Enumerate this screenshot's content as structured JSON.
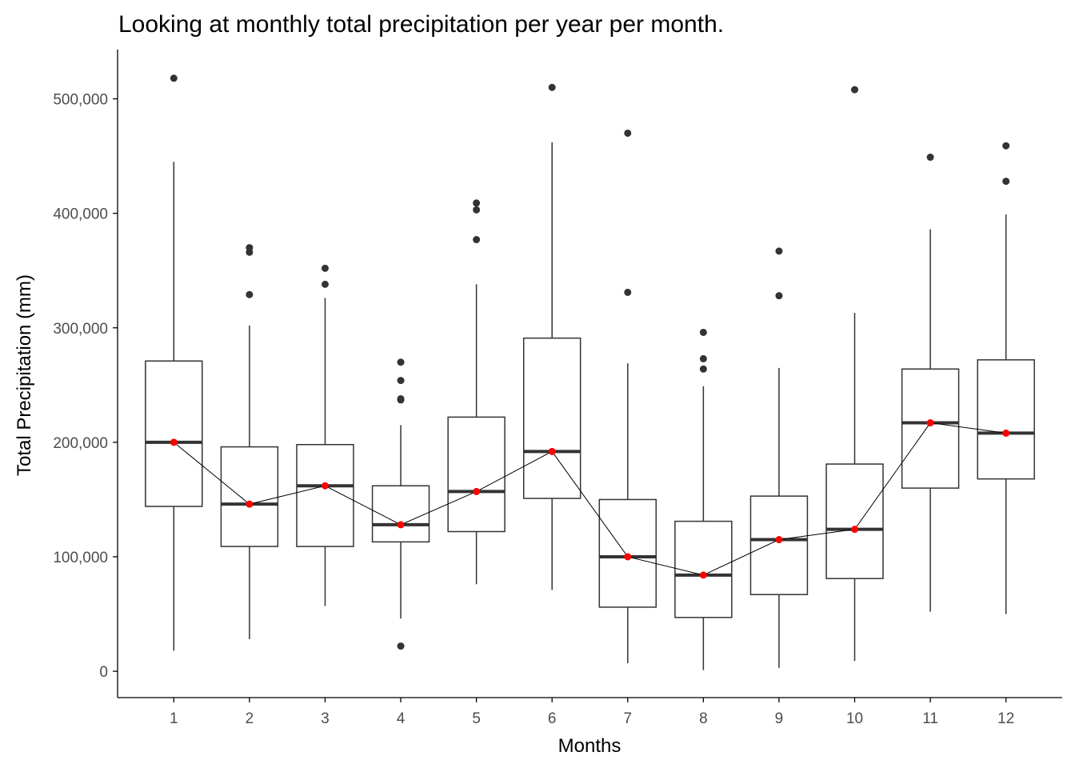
{
  "chart_data": {
    "type": "box",
    "title": "Looking at monthly total precipitation per year per month.",
    "xlabel": "Months",
    "ylabel": "Total Precipitation (mm)",
    "categories": [
      "1",
      "2",
      "3",
      "4",
      "5",
      "6",
      "7",
      "8",
      "9",
      "10",
      "11",
      "12"
    ],
    "ylim": [
      -23000,
      543000
    ],
    "yticks": [
      0,
      100000,
      200000,
      300000,
      400000,
      500000
    ],
    "ytick_labels": [
      "0",
      "100,000",
      "200,000",
      "300,000",
      "400,000",
      "500,000"
    ],
    "grid": false,
    "legend": "none",
    "boxes": [
      {
        "whisker_low": 18000,
        "q1": 144000,
        "median": 200000,
        "q3": 271000,
        "whisker_high": 445000,
        "outliers": [
          518000
        ]
      },
      {
        "whisker_low": 28000,
        "q1": 109000,
        "median": 146000,
        "q3": 196000,
        "whisker_high": 302000,
        "outliers": [
          329000,
          366000,
          370000
        ]
      },
      {
        "whisker_low": 57000,
        "q1": 109000,
        "median": 162000,
        "q3": 198000,
        "whisker_high": 326000,
        "outliers": [
          338000,
          352000
        ]
      },
      {
        "whisker_low": 46000,
        "q1": 113000,
        "median": 128000,
        "q3": 162000,
        "whisker_high": 215000,
        "outliers": [
          22000,
          237000,
          238000,
          254000,
          270000
        ]
      },
      {
        "whisker_low": 76000,
        "q1": 122000,
        "median": 157000,
        "q3": 222000,
        "whisker_high": 338000,
        "outliers": [
          377000,
          403000,
          409000
        ]
      },
      {
        "whisker_low": 71000,
        "q1": 151000,
        "median": 192000,
        "q3": 291000,
        "whisker_high": 462000,
        "outliers": [
          510000
        ]
      },
      {
        "whisker_low": 7000,
        "q1": 56000,
        "median": 100000,
        "q3": 150000,
        "whisker_high": 269000,
        "outliers": [
          331000,
          470000
        ]
      },
      {
        "whisker_low": 1000,
        "q1": 47000,
        "median": 84000,
        "q3": 131000,
        "whisker_high": 249000,
        "outliers": [
          264000,
          273000,
          296000
        ]
      },
      {
        "whisker_low": 3000,
        "q1": 67000,
        "median": 115000,
        "q3": 153000,
        "whisker_high": 265000,
        "outliers": [
          328000,
          367000
        ]
      },
      {
        "whisker_low": 9000,
        "q1": 81000,
        "median": 124000,
        "q3": 181000,
        "whisker_high": 313000,
        "outliers": [
          508000
        ]
      },
      {
        "whisker_low": 52000,
        "q1": 160000,
        "median": 217000,
        "q3": 264000,
        "whisker_high": 386000,
        "outliers": [
          449000
        ]
      },
      {
        "whisker_low": 50000,
        "q1": 168000,
        "median": 208000,
        "q3": 272000,
        "whisker_high": 399000,
        "outliers": [
          428000,
          459000
        ]
      }
    ],
    "median_line": {
      "values": [
        200000,
        146000,
        162000,
        128000,
        157000,
        192000,
        100000,
        84000,
        115000,
        124000,
        217000,
        208000
      ],
      "color": "#ff0000"
    },
    "colors": {
      "box_stroke": "#333333",
      "median_bar": "#333333",
      "outlier": "#333333",
      "line": "#000000",
      "axis": "#000000"
    }
  }
}
